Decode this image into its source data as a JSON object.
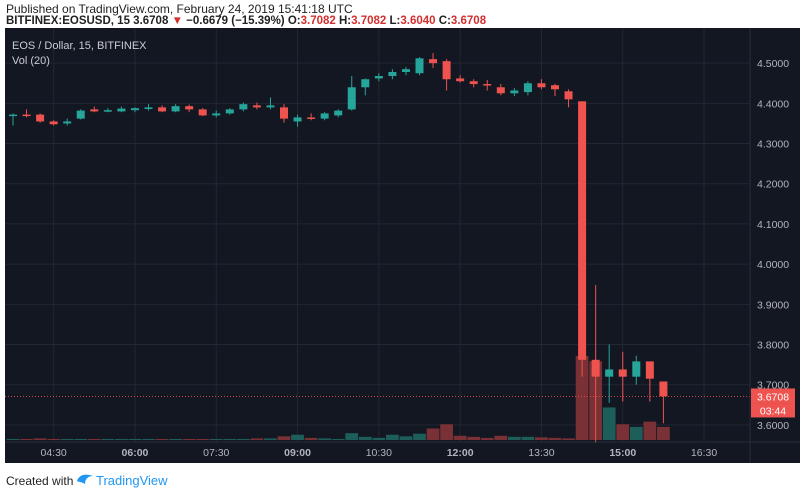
{
  "header": {
    "published": "Published on TradingView.com, February 24, 2019 15:41:18 UTC",
    "symbol": "BITFINEX:EOSUSD, 15",
    "last": "3.6708",
    "change_arrow": "▼",
    "change": "−0.6679 (−15.39%)",
    "o_label": "O:",
    "o_value": "3.7082",
    "h_label": "H:",
    "h_value": "3.7082",
    "l_label": "L:",
    "l_value": "3.6040",
    "c_label": "C:",
    "c_value": "3.6708"
  },
  "legend": {
    "title": "EOS / Dollar, 15, BITFINEX",
    "volume": "Vol (20)"
  },
  "footer": {
    "created_with": "Created with",
    "brand": "TradingView"
  },
  "colors": {
    "background": "#131722",
    "up": "#26a69a",
    "down": "#ef5350",
    "grid": "#232733",
    "price_line": "#ef5350",
    "axis_text": "#b2b5be"
  },
  "chart_data": {
    "type": "candlestick",
    "y_ticks": [
      "4.5000",
      "4.4000",
      "4.3000",
      "4.2000",
      "4.1000",
      "4.0000",
      "3.9000",
      "3.8000",
      "3.7000",
      "3.6000"
    ],
    "ylim": [
      3.555,
      4.58
    ],
    "x_ticks": [
      {
        "label": "04:30",
        "bold": false,
        "idx": 3
      },
      {
        "label": "06:00",
        "bold": true,
        "idx": 9
      },
      {
        "label": "07:30",
        "bold": false,
        "idx": 15
      },
      {
        "label": "09:00",
        "bold": true,
        "idx": 21
      },
      {
        "label": "10:30",
        "bold": false,
        "idx": 27
      },
      {
        "label": "12:00",
        "bold": true,
        "idx": 33
      },
      {
        "label": "13:30",
        "bold": false,
        "idx": 39
      },
      {
        "label": "15:00",
        "bold": true,
        "idx": 45
      },
      {
        "label": "16:30",
        "bold": false,
        "idx": 51
      }
    ],
    "last_price_label": "3.6708",
    "countdown_label": "03:44",
    "last_price": 3.6708,
    "candles": [
      {
        "o": 4.37,
        "h": 4.375,
        "l": 4.345,
        "c": 4.372,
        "v": 2
      },
      {
        "o": 4.372,
        "h": 4.385,
        "l": 4.365,
        "c": 4.37,
        "v": 2
      },
      {
        "o": 4.372,
        "h": 4.375,
        "l": 4.352,
        "c": 4.355,
        "v": 3
      },
      {
        "o": 4.355,
        "h": 4.358,
        "l": 4.345,
        "c": 4.348,
        "v": 2
      },
      {
        "o": 4.35,
        "h": 4.362,
        "l": 4.345,
        "c": 4.355,
        "v": 2
      },
      {
        "o": 4.362,
        "h": 4.385,
        "l": 4.36,
        "c": 4.382,
        "v": 2
      },
      {
        "o": 4.385,
        "h": 4.392,
        "l": 4.378,
        "c": 4.38,
        "v": 2
      },
      {
        "o": 4.38,
        "h": 4.388,
        "l": 4.378,
        "c": 4.383,
        "v": 2
      },
      {
        "o": 4.38,
        "h": 4.392,
        "l": 4.378,
        "c": 4.387,
        "v": 2
      },
      {
        "o": 4.383,
        "h": 4.39,
        "l": 4.378,
        "c": 4.388,
        "v": 2
      },
      {
        "o": 4.386,
        "h": 4.398,
        "l": 4.382,
        "c": 4.39,
        "v": 2
      },
      {
        "o": 4.39,
        "h": 4.395,
        "l": 4.378,
        "c": 4.38,
        "v": 2
      },
      {
        "o": 4.38,
        "h": 4.398,
        "l": 4.378,
        "c": 4.393,
        "v": 2
      },
      {
        "o": 4.393,
        "h": 4.397,
        "l": 4.378,
        "c": 4.385,
        "v": 2
      },
      {
        "o": 4.385,
        "h": 4.388,
        "l": 4.368,
        "c": 4.37,
        "v": 2
      },
      {
        "o": 4.37,
        "h": 4.382,
        "l": 4.365,
        "c": 4.375,
        "v": 2
      },
      {
        "o": 4.375,
        "h": 4.388,
        "l": 4.372,
        "c": 4.385,
        "v": 2
      },
      {
        "o": 4.385,
        "h": 4.402,
        "l": 4.38,
        "c": 4.398,
        "v": 2
      },
      {
        "o": 4.395,
        "h": 4.402,
        "l": 4.385,
        "c": 4.39,
        "v": 3
      },
      {
        "o": 4.39,
        "h": 4.415,
        "l": 4.385,
        "c": 4.395,
        "v": 3
      },
      {
        "o": 4.39,
        "h": 4.398,
        "l": 4.352,
        "c": 4.362,
        "v": 7
      },
      {
        "o": 4.355,
        "h": 4.372,
        "l": 4.342,
        "c": 4.365,
        "v": 10
      },
      {
        "o": 4.365,
        "h": 4.375,
        "l": 4.358,
        "c": 4.362,
        "v": 4
      },
      {
        "o": 4.362,
        "h": 4.378,
        "l": 4.358,
        "c": 4.375,
        "v": 3
      },
      {
        "o": 4.37,
        "h": 4.385,
        "l": 4.365,
        "c": 4.382,
        "v": 2
      },
      {
        "o": 4.385,
        "h": 4.468,
        "l": 4.382,
        "c": 4.44,
        "v": 13
      },
      {
        "o": 4.44,
        "h": 4.462,
        "l": 4.42,
        "c": 4.46,
        "v": 6
      },
      {
        "o": 4.462,
        "h": 4.475,
        "l": 4.455,
        "c": 4.468,
        "v": 4
      },
      {
        "o": 4.468,
        "h": 4.485,
        "l": 4.46,
        "c": 4.478,
        "v": 10
      },
      {
        "o": 4.478,
        "h": 4.49,
        "l": 4.47,
        "c": 4.485,
        "v": 7
      },
      {
        "o": 4.475,
        "h": 4.515,
        "l": 4.47,
        "c": 4.512,
        "v": 12
      },
      {
        "o": 4.51,
        "h": 4.525,
        "l": 4.488,
        "c": 4.5,
        "v": 22
      },
      {
        "o": 4.505,
        "h": 4.51,
        "l": 4.432,
        "c": 4.46,
        "v": 30
      },
      {
        "o": 4.462,
        "h": 4.47,
        "l": 4.452,
        "c": 4.455,
        "v": 8
      },
      {
        "o": 4.455,
        "h": 4.46,
        "l": 4.44,
        "c": 4.448,
        "v": 6
      },
      {
        "o": 4.448,
        "h": 4.458,
        "l": 4.432,
        "c": 4.445,
        "v": 4
      },
      {
        "o": 4.44,
        "h": 4.448,
        "l": 4.42,
        "c": 4.425,
        "v": 8
      },
      {
        "o": 4.425,
        "h": 4.438,
        "l": 4.418,
        "c": 4.432,
        "v": 6
      },
      {
        "o": 4.428,
        "h": 4.455,
        "l": 4.42,
        "c": 4.45,
        "v": 6
      },
      {
        "o": 4.45,
        "h": 4.46,
        "l": 4.435,
        "c": 4.44,
        "v": 5
      },
      {
        "o": 4.445,
        "h": 4.448,
        "l": 4.418,
        "c": 4.435,
        "v": 4
      },
      {
        "o": 4.43,
        "h": 4.435,
        "l": 4.39,
        "c": 4.41,
        "v": 3
      },
      {
        "o": 4.405,
        "h": 4.405,
        "l": 3.72,
        "c": 3.762,
        "v": 160
      },
      {
        "o": 3.762,
        "h": 3.948,
        "l": 3.555,
        "c": 3.72,
        "v": 150
      },
      {
        "o": 3.72,
        "h": 3.8,
        "l": 3.655,
        "c": 3.738,
        "v": 62
      },
      {
        "o": 3.738,
        "h": 3.782,
        "l": 3.658,
        "c": 3.72,
        "v": 30
      },
      {
        "o": 3.72,
        "h": 3.772,
        "l": 3.7,
        "c": 3.758,
        "v": 25
      },
      {
        "o": 3.758,
        "h": 3.758,
        "l": 3.658,
        "c": 3.715,
        "v": 35
      },
      {
        "o": 3.708,
        "h": 3.708,
        "l": 3.604,
        "c": 3.671,
        "v": 25
      }
    ]
  }
}
